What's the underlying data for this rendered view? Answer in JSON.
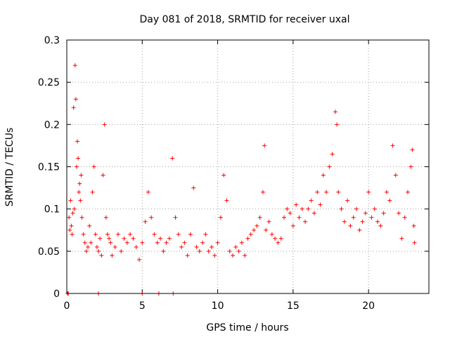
{
  "chart_data": {
    "type": "scatter",
    "title": "Day 081 of 2018, SRMTID for receiver uxal",
    "xlabel": "GPS time / hours",
    "ylabel": "SRMTID / TECUs",
    "xlim": [
      0,
      24
    ],
    "ylim": [
      0,
      0.3
    ],
    "x_ticks": [
      0,
      5,
      10,
      15,
      20
    ],
    "x_tick_labels": [
      "0",
      "5",
      "10",
      "15",
      "20"
    ],
    "y_ticks": [
      0,
      0.05,
      0.1,
      0.15,
      0.2,
      0.25,
      0.3
    ],
    "y_tick_labels": [
      "0",
      "0.05",
      "0.1",
      "0.15",
      "0.2",
      "0.25",
      "0.3"
    ],
    "grid": true,
    "marker": "plus",
    "color": "#ff0000",
    "series": [
      {
        "name": "SRMTID",
        "points": [
          [
            0.05,
            0.0
          ],
          [
            0.1,
            0.0
          ],
          [
            0.15,
            0.09
          ],
          [
            0.2,
            0.075
          ],
          [
            0.25,
            0.11
          ],
          [
            0.3,
            0.08
          ],
          [
            0.35,
            0.07
          ],
          [
            0.4,
            0.095
          ],
          [
            0.45,
            0.22
          ],
          [
            0.5,
            0.1
          ],
          [
            0.55,
            0.27
          ],
          [
            0.6,
            0.23
          ],
          [
            0.65,
            0.15
          ],
          [
            0.7,
            0.18
          ],
          [
            0.75,
            0.16
          ],
          [
            0.8,
            0.12
          ],
          [
            0.85,
            0.13
          ],
          [
            0.9,
            0.11
          ],
          [
            0.95,
            0.14
          ],
          [
            1.0,
            0.09
          ],
          [
            1.1,
            0.07
          ],
          [
            1.2,
            0.06
          ],
          [
            1.3,
            0.05
          ],
          [
            1.4,
            0.055
          ],
          [
            1.5,
            0.08
          ],
          [
            1.6,
            0.06
          ],
          [
            1.7,
            0.12
          ],
          [
            1.8,
            0.15
          ],
          [
            1.9,
            0.07
          ],
          [
            2.0,
            0.055
          ],
          [
            2.1,
            0.0
          ],
          [
            2.1,
            0.05
          ],
          [
            2.2,
            0.065
          ],
          [
            2.3,
            0.045
          ],
          [
            2.4,
            0.14
          ],
          [
            2.5,
            0.2
          ],
          [
            2.6,
            0.09
          ],
          [
            2.7,
            0.07
          ],
          [
            2.8,
            0.065
          ],
          [
            2.9,
            0.06
          ],
          [
            3.0,
            0.045
          ],
          [
            3.2,
            0.055
          ],
          [
            3.4,
            0.07
          ],
          [
            3.6,
            0.05
          ],
          [
            3.8,
            0.065
          ],
          [
            4.0,
            0.06
          ],
          [
            4.2,
            0.07
          ],
          [
            4.4,
            0.065
          ],
          [
            4.6,
            0.055
          ],
          [
            4.8,
            0.04
          ],
          [
            5.0,
            0.0
          ],
          [
            5.0,
            0.06
          ],
          [
            5.2,
            0.085
          ],
          [
            5.4,
            0.12
          ],
          [
            5.6,
            0.09
          ],
          [
            5.8,
            0.07
          ],
          [
            6.0,
            0.06
          ],
          [
            6.1,
            0.0
          ],
          [
            6.2,
            0.065
          ],
          [
            6.4,
            0.05
          ],
          [
            6.6,
            0.06
          ],
          [
            6.8,
            0.065
          ],
          [
            7.0,
            0.16
          ],
          [
            7.05,
            0.0
          ],
          [
            7.2,
            0.09
          ],
          [
            7.4,
            0.07
          ],
          [
            7.6,
            0.055
          ],
          [
            7.8,
            0.06
          ],
          [
            8.0,
            0.045
          ],
          [
            8.2,
            0.07
          ],
          [
            8.4,
            0.125
          ],
          [
            8.6,
            0.055
          ],
          [
            8.8,
            0.05
          ],
          [
            9.0,
            0.06
          ],
          [
            9.2,
            0.07
          ],
          [
            9.4,
            0.05
          ],
          [
            9.6,
            0.055
          ],
          [
            9.8,
            0.045
          ],
          [
            10.0,
            0.06
          ],
          [
            10.2,
            0.09
          ],
          [
            10.4,
            0.14
          ],
          [
            10.6,
            0.11
          ],
          [
            10.8,
            0.05
          ],
          [
            11.0,
            0.045
          ],
          [
            11.2,
            0.055
          ],
          [
            11.4,
            0.05
          ],
          [
            11.6,
            0.06
          ],
          [
            11.8,
            0.045
          ],
          [
            12.0,
            0.065
          ],
          [
            12.2,
            0.07
          ],
          [
            12.4,
            0.075
          ],
          [
            12.6,
            0.08
          ],
          [
            12.8,
            0.09
          ],
          [
            13.0,
            0.12
          ],
          [
            13.1,
            0.175
          ],
          [
            13.2,
            0.075
          ],
          [
            13.4,
            0.085
          ],
          [
            13.6,
            0.07
          ],
          [
            13.8,
            0.065
          ],
          [
            14.0,
            0.06
          ],
          [
            14.2,
            0.065
          ],
          [
            14.4,
            0.09
          ],
          [
            14.6,
            0.1
          ],
          [
            14.8,
            0.095
          ],
          [
            15.0,
            0.08
          ],
          [
            15.2,
            0.105
          ],
          [
            15.4,
            0.09
          ],
          [
            15.6,
            0.1
          ],
          [
            15.8,
            0.085
          ],
          [
            16.0,
            0.1
          ],
          [
            16.2,
            0.11
          ],
          [
            16.4,
            0.095
          ],
          [
            16.6,
            0.12
          ],
          [
            16.8,
            0.105
          ],
          [
            17.0,
            0.14
          ],
          [
            17.2,
            0.12
          ],
          [
            17.4,
            0.15
          ],
          [
            17.6,
            0.165
          ],
          [
            17.8,
            0.215
          ],
          [
            17.9,
            0.2
          ],
          [
            18.0,
            0.12
          ],
          [
            18.2,
            0.1
          ],
          [
            18.4,
            0.085
          ],
          [
            18.6,
            0.11
          ],
          [
            18.8,
            0.08
          ],
          [
            19.0,
            0.09
          ],
          [
            19.2,
            0.1
          ],
          [
            19.4,
            0.075
          ],
          [
            19.6,
            0.085
          ],
          [
            19.8,
            0.095
          ],
          [
            20.0,
            0.12
          ],
          [
            20.2,
            0.09
          ],
          [
            20.4,
            0.1
          ],
          [
            20.6,
            0.085
          ],
          [
            20.8,
            0.08
          ],
          [
            21.0,
            0.095
          ],
          [
            21.2,
            0.12
          ],
          [
            21.4,
            0.11
          ],
          [
            21.6,
            0.175
          ],
          [
            21.8,
            0.14
          ],
          [
            22.0,
            0.095
          ],
          [
            22.2,
            0.065
          ],
          [
            22.4,
            0.09
          ],
          [
            22.6,
            0.12
          ],
          [
            22.8,
            0.15
          ],
          [
            22.9,
            0.17
          ],
          [
            23.0,
            0.08
          ],
          [
            23.05,
            0.06
          ]
        ]
      }
    ]
  }
}
